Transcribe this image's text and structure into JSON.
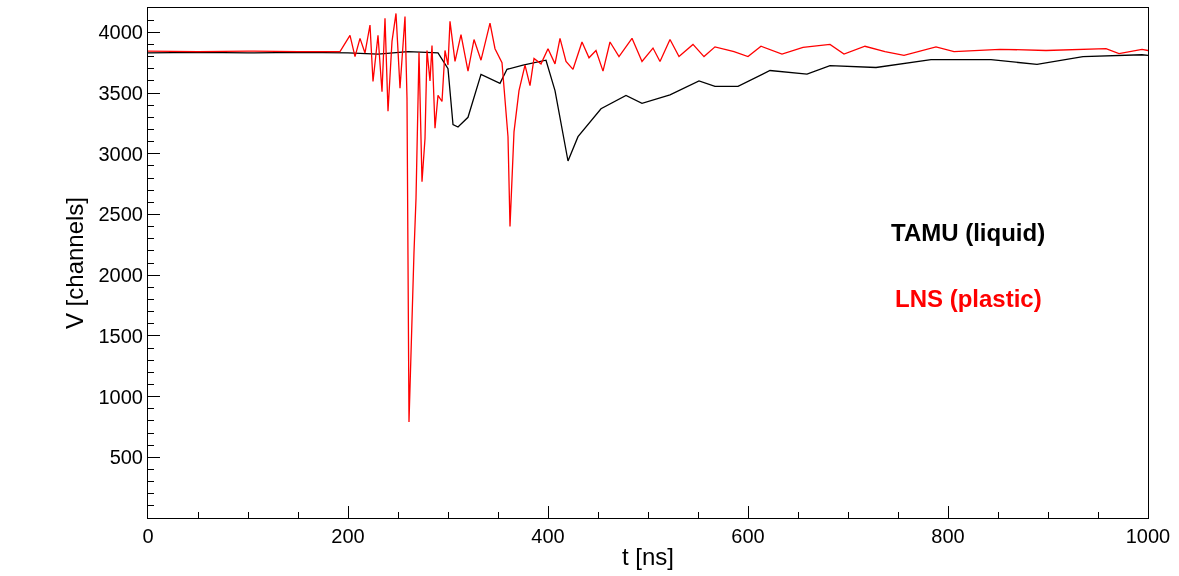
{
  "chart_data": {
    "type": "line",
    "xlabel": "t [ns]",
    "ylabel": "V [channels]",
    "xlim": [
      0,
      1000
    ],
    "ylim": [
      0,
      4200
    ],
    "xticks": [
      0,
      200,
      400,
      600,
      800,
      1000
    ],
    "yticks": [
      500,
      1000,
      1500,
      2000,
      2500,
      3000,
      3500,
      4000
    ],
    "grid": false,
    "legend": false,
    "marker": "none",
    "line_style": "solid",
    "series": [
      {
        "name": "TAMU (liquid)",
        "color": "#000000",
        "x": [
          0,
          50,
          100,
          150,
          200,
          230,
          260,
          290,
          300,
          305,
          310,
          320,
          333,
          352,
          359,
          375,
          398,
          407,
          420,
          430,
          453,
          478,
          494,
          522,
          551,
          567,
          590,
          622,
          659,
          682,
          728,
          783,
          843,
          889,
          935,
          994,
          1000
        ],
        "values": [
          3830,
          3835,
          3830,
          3835,
          3830,
          3820,
          3840,
          3830,
          3700,
          3240,
          3220,
          3300,
          3653,
          3580,
          3695,
          3730,
          3770,
          3520,
          2940,
          3140,
          3370,
          3480,
          3415,
          3485,
          3600,
          3555,
          3555,
          3685,
          3655,
          3725,
          3710,
          3775,
          3775,
          3735,
          3800,
          3815,
          3810
        ]
      },
      {
        "name": "LNS (plastic)",
        "color": "#ff0000",
        "x": [
          0,
          50,
          100,
          150,
          192,
          202,
          207,
          212,
          217,
          222,
          225,
          230,
          234,
          237,
          240,
          244,
          248,
          252,
          257,
          259,
          261,
          266,
          268,
          271,
          274,
          277,
          279,
          282,
          284,
          287,
          290,
          294,
          297,
          300,
          302,
          307,
          313,
          320,
          326,
          333,
          342,
          347,
          354,
          360,
          362,
          366,
          371,
          377,
          382,
          386,
          393,
          400,
          407,
          412,
          418,
          425,
          434,
          441,
          448,
          455,
          462,
          471,
          484,
          494,
          505,
          512,
          522,
          531,
          545,
          556,
          567,
          586,
          600,
          613,
          634,
          655,
          682,
          696,
          717,
          737,
          756,
          788,
          806,
          852,
          898,
          958,
          971,
          994,
          1000
        ],
        "values": [
          3845,
          3840,
          3845,
          3840,
          3840,
          3975,
          3800,
          3950,
          3830,
          4060,
          3595,
          3975,
          3510,
          4115,
          3350,
          3925,
          4155,
          3540,
          4130,
          3455,
          790,
          2190,
          2630,
          3835,
          2770,
          3125,
          3850,
          3600,
          3890,
          3210,
          3480,
          3430,
          3850,
          3730,
          4090,
          3760,
          3980,
          3680,
          3940,
          3770,
          4075,
          3865,
          3750,
          3140,
          2400,
          3180,
          3520,
          3730,
          3560,
          3785,
          3740,
          3865,
          3740,
          3950,
          3760,
          3695,
          3920,
          3790,
          3850,
          3680,
          3920,
          3800,
          3950,
          3760,
          3870,
          3760,
          3940,
          3800,
          3900,
          3800,
          3880,
          3840,
          3800,
          3885,
          3820,
          3875,
          3900,
          3820,
          3885,
          3840,
          3810,
          3880,
          3840,
          3860,
          3850,
          3865,
          3825,
          3860,
          3850
        ]
      }
    ]
  }
}
